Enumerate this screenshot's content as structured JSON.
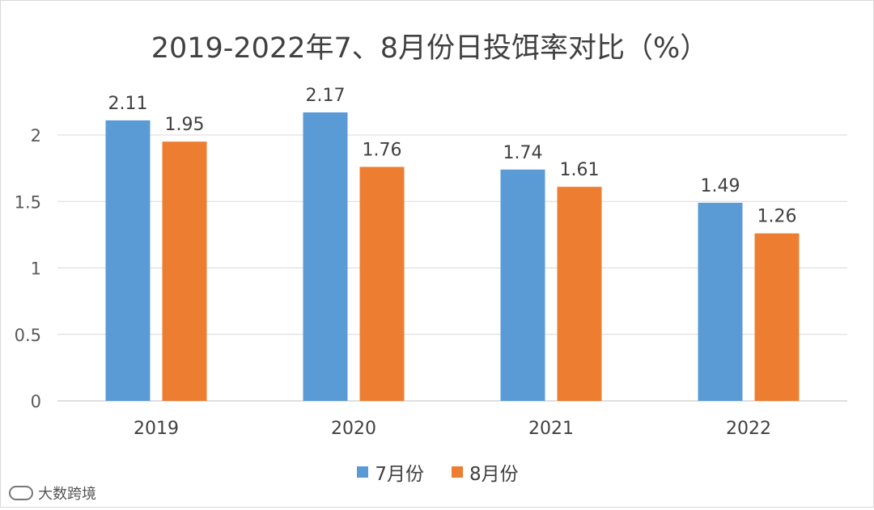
{
  "chart_data": {
    "type": "bar",
    "title": "2019-2022年7、8月份日投饵率对比（%）",
    "categories": [
      "2019",
      "2020",
      "2021",
      "2022"
    ],
    "series": [
      {
        "name": "7月份",
        "values": [
          2.11,
          2.17,
          1.74,
          1.49
        ],
        "color": "#5b9bd5"
      },
      {
        "name": "8月份",
        "values": [
          1.95,
          1.76,
          1.61,
          1.26
        ],
        "color": "#ed7d31"
      }
    ],
    "y_ticks": [
      "0",
      "0.5",
      "1",
      "1.5",
      "2"
    ],
    "ylim": [
      0,
      2.12
    ],
    "grid": true,
    "legend": "bottom",
    "data_labels": true
  },
  "watermark": {
    "text": "大数跨境"
  }
}
